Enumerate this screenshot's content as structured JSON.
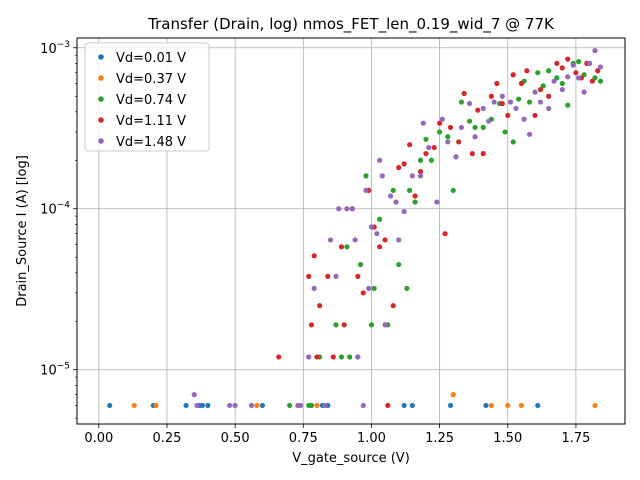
{
  "chart_data": {
    "type": "scatter",
    "title": "Transfer (Drain, log) nmos_FET_len_0.19_wid_7 @ 77K",
    "xlabel": "V_gate_source (V)",
    "ylabel": "Drain_Source I (A) [log]",
    "xlim": [
      -0.08,
      1.93
    ],
    "ylim": [
      4.6e-06,
      0.00115
    ],
    "yscale": "log",
    "grid": true,
    "legend_position": "top-left",
    "x_ticks": [
      {
        "value": 0.0,
        "label": "0.00"
      },
      {
        "value": 0.25,
        "label": "0.25"
      },
      {
        "value": 0.5,
        "label": "0.50"
      },
      {
        "value": 0.75,
        "label": "0.75"
      },
      {
        "value": 1.0,
        "label": "1.00"
      },
      {
        "value": 1.25,
        "label": "1.25"
      },
      {
        "value": 1.5,
        "label": "1.50"
      },
      {
        "value": 1.75,
        "label": "1.75"
      }
    ],
    "y_ticks": [
      {
        "value": 1e-05,
        "base": "10",
        "exp": "−5"
      },
      {
        "value": 0.0001,
        "base": "10",
        "exp": "−4"
      },
      {
        "value": 0.001,
        "base": "10",
        "exp": "−3"
      }
    ],
    "series": [
      {
        "name": "Vd=0.01 V",
        "color": "#1f77b4",
        "points": [
          [
            0.04,
            6e-06
          ],
          [
            0.2,
            6e-06
          ],
          [
            0.32,
            6e-06
          ],
          [
            0.37,
            6e-06
          ],
          [
            0.38,
            6e-06
          ],
          [
            0.4,
            6e-06
          ],
          [
            0.6,
            6e-06
          ],
          [
            0.78,
            6e-06
          ],
          [
            0.82,
            6e-06
          ],
          [
            0.84,
            6e-06
          ],
          [
            1.12,
            6e-06
          ],
          [
            1.15,
            6e-06
          ],
          [
            1.29,
            6e-06
          ],
          [
            1.42,
            6e-06
          ],
          [
            1.61,
            6e-06
          ]
        ]
      },
      {
        "name": "Vd=0.37 V",
        "color": "#ff7f0e",
        "points": [
          [
            0.13,
            6e-06
          ],
          [
            0.21,
            6e-06
          ],
          [
            0.58,
            6e-06
          ],
          [
            0.8,
            6e-06
          ],
          [
            1.3,
            7e-06
          ],
          [
            1.44,
            6e-06
          ],
          [
            1.5,
            6e-06
          ],
          [
            1.55,
            6e-06
          ],
          [
            1.82,
            6e-06
          ]
        ]
      },
      {
        "name": "Vd=0.74 V",
        "color": "#2ca02c",
        "points": [
          [
            0.7,
            6e-06
          ],
          [
            0.77,
            6e-06
          ],
          [
            0.78,
            6e-06
          ],
          [
            0.81,
            1.2e-05
          ],
          [
            0.87,
            1.9e-05
          ],
          [
            0.89,
            1.2e-05
          ],
          [
            0.91,
            5.8e-05
          ],
          [
            0.92,
            1.2e-05
          ],
          [
            0.95,
            1.2e-05
          ],
          [
            0.96,
            4.5e-05
          ],
          [
            0.98,
            0.00016
          ],
          [
            1.0,
            1.9e-05
          ],
          [
            1.01,
            3.2e-05
          ],
          [
            1.03,
            8.6e-05
          ],
          [
            1.06,
            1.9e-05
          ],
          [
            1.08,
            0.00013
          ],
          [
            1.1,
            4.5e-05
          ],
          [
            1.13,
            3.2e-05
          ],
          [
            1.14,
            0.00013
          ],
          [
            1.16,
            0.00011
          ],
          [
            1.18,
            0.0002
          ],
          [
            1.2,
            0.00027
          ],
          [
            1.22,
            0.0002
          ],
          [
            1.25,
            0.0003
          ],
          [
            1.28,
            0.00028
          ],
          [
            1.3,
            0.00013
          ],
          [
            1.33,
            0.00046
          ],
          [
            1.36,
            0.00035
          ],
          [
            1.38,
            0.00032
          ],
          [
            1.41,
            0.00032
          ],
          [
            1.44,
            0.00036
          ],
          [
            1.47,
            0.00045
          ],
          [
            1.49,
            0.0003
          ],
          [
            1.52,
            0.00026
          ],
          [
            1.54,
            0.00048
          ],
          [
            1.56,
            0.00062
          ],
          [
            1.58,
            0.00046
          ],
          [
            1.61,
            0.0007
          ],
          [
            1.63,
            0.00058
          ],
          [
            1.65,
            0.00072
          ],
          [
            1.68,
            0.00065
          ],
          [
            1.7,
            0.0006
          ],
          [
            1.72,
            0.00044
          ],
          [
            1.74,
            0.0008
          ],
          [
            1.76,
            0.00082
          ],
          [
            1.78,
            0.00068
          ],
          [
            1.8,
            0.0008
          ],
          [
            1.82,
            0.00065
          ],
          [
            1.84,
            0.00062
          ]
        ]
      },
      {
        "name": "Vd=1.11 V",
        "color": "#d62728",
        "points": [
          [
            0.66,
            1.2e-05
          ],
          [
            0.77,
            3.8e-05
          ],
          [
            0.78,
            1.9e-05
          ],
          [
            0.79,
            5.1e-05
          ],
          [
            0.8,
            1.2e-05
          ],
          [
            0.81,
            2.5e-05
          ],
          [
            0.84,
            3.8e-05
          ],
          [
            0.86,
            1.2e-05
          ],
          [
            0.89,
            5.8e-05
          ],
          [
            0.9,
            1.9e-05
          ],
          [
            0.93,
            0.0001
          ],
          [
            0.95,
            3.8e-05
          ],
          [
            0.97,
            3e-05
          ],
          [
            0.99,
            0.00013
          ],
          [
            1.01,
            7.7e-05
          ],
          [
            1.03,
            5.8e-05
          ],
          [
            1.05,
            6.4e-05
          ],
          [
            1.06,
            6e-06
          ],
          [
            1.08,
            2.5e-05
          ],
          [
            1.1,
            0.00018
          ],
          [
            1.12,
            0.00019
          ],
          [
            1.14,
            0.00025
          ],
          [
            1.16,
            0.00012
          ],
          [
            1.18,
            0.00017
          ],
          [
            1.2,
            0.00022
          ],
          [
            1.23,
            0.00024
          ],
          [
            1.25,
            0.00034
          ],
          [
            1.27,
            7e-05
          ],
          [
            1.29,
            0.00032
          ],
          [
            1.32,
            0.00026
          ],
          [
            1.34,
            0.00052
          ],
          [
            1.37,
            0.00022
          ],
          [
            1.39,
            0.00041
          ],
          [
            1.41,
            0.00022
          ],
          [
            1.44,
            0.0005
          ],
          [
            1.46,
            0.0006
          ],
          [
            1.48,
            0.00045
          ],
          [
            1.5,
            0.00038
          ],
          [
            1.52,
            0.00068
          ],
          [
            1.55,
            0.0006
          ],
          [
            1.57,
            0.00072
          ],
          [
            1.6,
            0.00038
          ],
          [
            1.62,
            0.00055
          ],
          [
            1.65,
            0.0005
          ],
          [
            1.68,
            0.0008
          ],
          [
            1.7,
            0.00075
          ],
          [
            1.72,
            0.00085
          ],
          [
            1.75,
            0.0007
          ],
          [
            1.77,
            0.00065
          ],
          [
            1.79,
            0.0008
          ],
          [
            1.81,
            0.00062
          ],
          [
            1.83,
            0.00072
          ]
        ]
      },
      {
        "name": "Vd=1.48 V",
        "color": "#9467bd",
        "points": [
          [
            0.35,
            7e-06
          ],
          [
            0.36,
            6e-06
          ],
          [
            0.48,
            6e-06
          ],
          [
            0.5,
            6e-06
          ],
          [
            0.56,
            6e-06
          ],
          [
            0.73,
            6e-06
          ],
          [
            0.74,
            6e-06
          ],
          [
            0.77,
            1.2e-05
          ],
          [
            0.79,
            3.2e-05
          ],
          [
            0.83,
            6e-06
          ],
          [
            0.85,
            6.4e-05
          ],
          [
            0.87,
            3.8e-05
          ],
          [
            0.88,
            0.0001
          ],
          [
            0.91,
            0.0001
          ],
          [
            0.93,
            0.0001
          ],
          [
            0.94,
            6.4e-05
          ],
          [
            0.95,
            1.2e-05
          ],
          [
            0.97,
            6e-06
          ],
          [
            0.98,
            0.00013
          ],
          [
            0.99,
            3.2e-05
          ],
          [
            1.0,
            7.7e-05
          ],
          [
            1.02,
            7e-05
          ],
          [
            1.03,
            0.0002
          ],
          [
            1.04,
            0.00016
          ],
          [
            1.05,
            1.9e-05
          ],
          [
            1.07,
            0.00012
          ],
          [
            1.09,
            0.00011
          ],
          [
            1.1,
            6.4e-05
          ],
          [
            1.12,
            9.6e-05
          ],
          [
            1.15,
            0.00016
          ],
          [
            1.18,
            0.00016
          ],
          [
            1.19,
            0.00034
          ],
          [
            1.21,
            0.00024
          ],
          [
            1.24,
            0.00011
          ],
          [
            1.26,
            0.00036
          ],
          [
            1.28,
            0.00026
          ],
          [
            1.31,
            0.00021
          ],
          [
            1.33,
            0.00032
          ],
          [
            1.36,
            0.00045
          ],
          [
            1.38,
            0.00028
          ],
          [
            1.41,
            0.00042
          ],
          [
            1.43,
            0.00035
          ],
          [
            1.45,
            0.00046
          ],
          [
            1.48,
            0.0005
          ],
          [
            1.51,
            0.00046
          ],
          [
            1.53,
            0.00042
          ],
          [
            1.56,
            0.00036
          ],
          [
            1.58,
            0.00029
          ],
          [
            1.6,
            0.00053
          ],
          [
            1.62,
            0.00046
          ],
          [
            1.65,
            0.00042
          ],
          [
            1.67,
            0.00062
          ],
          [
            1.7,
            0.00055
          ],
          [
            1.72,
            0.00066
          ],
          [
            1.74,
            0.00078
          ],
          [
            1.76,
            0.00065
          ],
          [
            1.78,
            0.00053
          ],
          [
            1.8,
            0.0008
          ],
          [
            1.82,
            0.00096
          ],
          [
            1.84,
            0.00076
          ]
        ]
      }
    ]
  }
}
